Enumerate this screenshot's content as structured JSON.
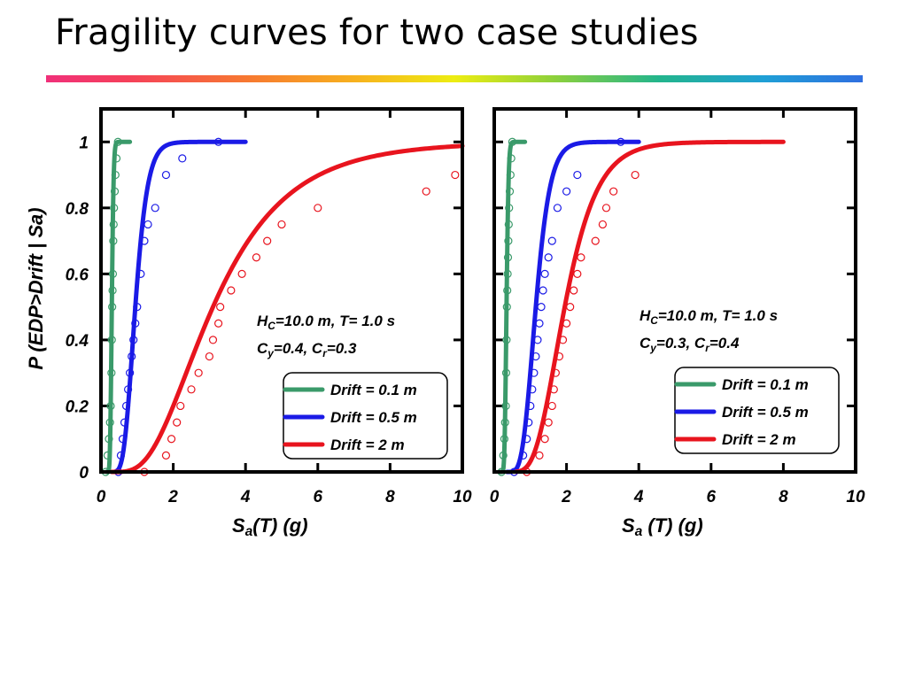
{
  "slide": {
    "title": "Fragility curves for two case studies"
  },
  "chart_data": [
    {
      "type": "line",
      "title": "",
      "xlabel": "Sa(T) (g)",
      "xlabel_parts": [
        "S",
        "a",
        "(T) (g)"
      ],
      "ylabel": "P (EDP>Drift | Sa)",
      "xlim": [
        0,
        10
      ],
      "ylim": [
        0,
        1.1
      ],
      "xticks": [
        0,
        2,
        4,
        6,
        8,
        10
      ],
      "yticks": [
        0,
        0.2,
        0.4,
        0.6,
        0.8,
        1
      ],
      "ytick_labels": [
        "0",
        "0.2",
        "0.4",
        "0.6",
        "0.8",
        "1"
      ],
      "annotation": {
        "line1": [
          "H",
          "C",
          "=10.0 m, T= 1.0 s"
        ],
        "line2": [
          "C",
          "y",
          "=0.4, C",
          "r",
          "=0.3"
        ]
      },
      "legend_position": "bottom-right",
      "series": [
        {
          "name": "Drift = 0.1 m",
          "color": "#3a9a6a",
          "fit": {
            "median": 0.3,
            "beta": 0.13,
            "xmin": 0.15,
            "xmax": 0.8
          },
          "observed": {
            "x": [
              0.13,
              0.18,
              0.22,
              0.25,
              0.27,
              0.29,
              0.3,
              0.31,
              0.32,
              0.33,
              0.34,
              0.35,
              0.36,
              0.38,
              0.4,
              0.43,
              0.47
            ],
            "y": [
              0,
              0.05,
              0.1,
              0.15,
              0.2,
              0.3,
              0.4,
              0.5,
              0.55,
              0.6,
              0.7,
              0.75,
              0.8,
              0.85,
              0.9,
              0.95,
              1
            ]
          }
        },
        {
          "name": "Drift = 0.5 m",
          "color": "#1a1ae6",
          "fit": {
            "median": 0.95,
            "beta": 0.28,
            "xmin": 0.3,
            "xmax": 4.0
          },
          "observed": {
            "x": [
              0.48,
              0.55,
              0.6,
              0.65,
              0.7,
              0.75,
              0.8,
              0.85,
              0.9,
              0.95,
              1.0,
              1.1,
              1.2,
              1.3,
              1.5,
              1.8,
              2.25,
              3.25
            ],
            "y": [
              0,
              0.05,
              0.1,
              0.15,
              0.2,
              0.25,
              0.3,
              0.35,
              0.4,
              0.45,
              0.5,
              0.6,
              0.7,
              0.75,
              0.8,
              0.9,
              0.95,
              1
            ]
          }
        },
        {
          "name": "Drift = 2 m",
          "color": "#e8141e",
          "fit": {
            "median": 3.1,
            "beta": 0.52,
            "xmin": 0.3,
            "xmax": 10.0
          },
          "observed": {
            "x": [
              1.2,
              1.8,
              1.95,
              2.1,
              2.2,
              2.5,
              2.7,
              3.0,
              3.1,
              3.25,
              3.3,
              3.6,
              3.9,
              4.3,
              4.6,
              5.0,
              6.0,
              9.0,
              9.8
            ],
            "y": [
              0,
              0.05,
              0.1,
              0.15,
              0.2,
              0.25,
              0.3,
              0.35,
              0.4,
              0.45,
              0.5,
              0.55,
              0.6,
              0.65,
              0.7,
              0.75,
              0.8,
              0.85,
              0.9
            ]
          }
        }
      ]
    },
    {
      "type": "line",
      "title": "",
      "xlabel": "Sa (T) (g)",
      "xlabel_parts": [
        "S",
        "a",
        " (T) (g)"
      ],
      "ylabel": "",
      "xlim": [
        0,
        10
      ],
      "ylim": [
        0,
        1.1
      ],
      "xticks": [
        0,
        2,
        4,
        6,
        8,
        10
      ],
      "yticks": [
        0,
        0.2,
        0.4,
        0.6,
        0.8,
        1
      ],
      "ytick_labels": [],
      "annotation": {
        "line1": [
          "H",
          "C",
          "=10.0 m, T= 1.0 s"
        ],
        "line2": [
          "C",
          "y",
          "=0.3, C",
          "r",
          "=0.4"
        ]
      },
      "legend_position": "bottom-right",
      "series": [
        {
          "name": "Drift = 0.1 m",
          "color": "#3a9a6a",
          "fit": {
            "median": 0.34,
            "beta": 0.13,
            "xmin": 0.15,
            "xmax": 0.85
          },
          "observed": {
            "x": [
              0.2,
              0.25,
              0.28,
              0.3,
              0.32,
              0.33,
              0.34,
              0.35,
              0.36,
              0.37,
              0.38,
              0.39,
              0.4,
              0.41,
              0.43,
              0.45,
              0.47,
              0.5
            ],
            "y": [
              0,
              0.05,
              0.1,
              0.15,
              0.2,
              0.3,
              0.4,
              0.5,
              0.55,
              0.6,
              0.65,
              0.7,
              0.75,
              0.8,
              0.85,
              0.9,
              0.95,
              1
            ]
          }
        },
        {
          "name": "Drift = 0.5 m",
          "color": "#1a1ae6",
          "fit": {
            "median": 1.15,
            "beta": 0.27,
            "xmin": 0.35,
            "xmax": 4.0
          },
          "observed": {
            "x": [
              0.55,
              0.8,
              0.9,
              0.95,
              1.0,
              1.05,
              1.1,
              1.15,
              1.2,
              1.25,
              1.3,
              1.35,
              1.4,
              1.5,
              1.6,
              1.75,
              2.0,
              2.3,
              3.5
            ],
            "y": [
              0,
              0.05,
              0.1,
              0.15,
              0.2,
              0.25,
              0.3,
              0.35,
              0.4,
              0.45,
              0.5,
              0.55,
              0.6,
              0.65,
              0.7,
              0.8,
              0.85,
              0.9,
              1
            ]
          }
        },
        {
          "name": "Drift = 2 m",
          "color": "#e8141e",
          "fit": {
            "median": 1.95,
            "beta": 0.36,
            "xmin": 0.6,
            "xmax": 8.0
          },
          "observed": {
            "x": [
              0.9,
              1.25,
              1.4,
              1.5,
              1.6,
              1.65,
              1.7,
              1.8,
              1.9,
              2.0,
              2.1,
              2.2,
              2.3,
              2.4,
              2.8,
              3.0,
              3.1,
              3.3,
              3.9
            ],
            "y": [
              0,
              0.05,
              0.1,
              0.15,
              0.2,
              0.25,
              0.3,
              0.35,
              0.4,
              0.45,
              0.5,
              0.55,
              0.6,
              0.65,
              0.7,
              0.75,
              0.8,
              0.85,
              0.9
            ]
          }
        }
      ]
    }
  ]
}
